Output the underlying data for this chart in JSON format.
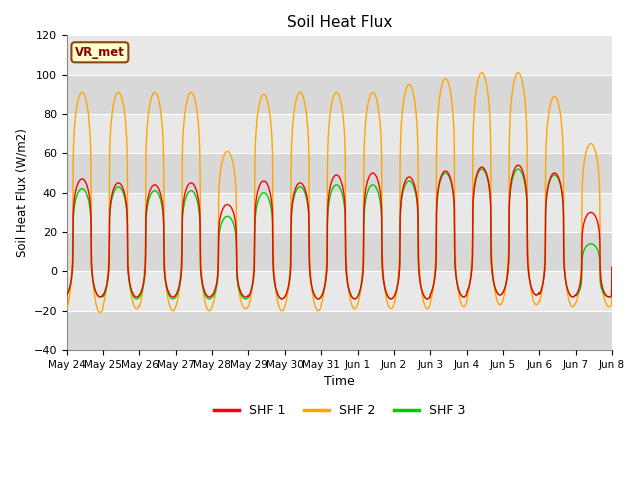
{
  "title": "Soil Heat Flux",
  "xlabel": "Time",
  "ylabel": "Soil Heat Flux (W/m2)",
  "ylim": [
    -40,
    120
  ],
  "yticks": [
    -40,
    -20,
    0,
    20,
    40,
    60,
    80,
    100,
    120
  ],
  "colors": {
    "SHF 1": "#ff0000",
    "SHF 2": "#ffa500",
    "SHF 3": "#00cc00"
  },
  "legend_label": "VR_met",
  "fig_bg_color": "#ffffff",
  "plot_bg_color": "#e8e8e8",
  "tick_labels": [
    "May 24",
    "May 25",
    "May 26",
    "May 27",
    "May 28",
    "May 29",
    "May 30",
    "May 31",
    "Jun 1",
    "Jun 2",
    "Jun 3",
    "Jun 4",
    "Jun 5",
    "Jun 6",
    "Jun 7",
    "Jun 8"
  ],
  "series_peaks": {
    "SHF1": [
      47,
      45,
      44,
      45,
      34,
      46,
      45,
      49,
      50,
      48,
      51,
      53,
      54,
      50,
      30,
      7
    ],
    "SHF2": [
      91,
      91,
      91,
      91,
      61,
      90,
      91,
      91,
      91,
      95,
      98,
      101,
      101,
      89,
      65,
      12
    ],
    "SHF3": [
      42,
      43,
      41,
      41,
      28,
      40,
      43,
      44,
      44,
      46,
      50,
      52,
      52,
      49,
      14,
      10
    ]
  },
  "series_troughs": {
    "SHF1": [
      -13,
      -13,
      -13,
      -13,
      -13,
      -14,
      -14,
      -14,
      -14,
      -14,
      -13,
      -12,
      -12,
      -13,
      -13,
      2
    ],
    "SHF2": [
      -21,
      -19,
      -20,
      -20,
      -19,
      -20,
      -20,
      -19,
      -19,
      -19,
      -18,
      -17,
      -17,
      -18,
      -18,
      2
    ],
    "SHF3": [
      -13,
      -14,
      -14,
      -14,
      -14,
      -14,
      -14,
      -14,
      -14,
      -14,
      -13,
      -12,
      -12,
      -13,
      -13,
      2
    ]
  },
  "peak_sharpness": 3.5
}
